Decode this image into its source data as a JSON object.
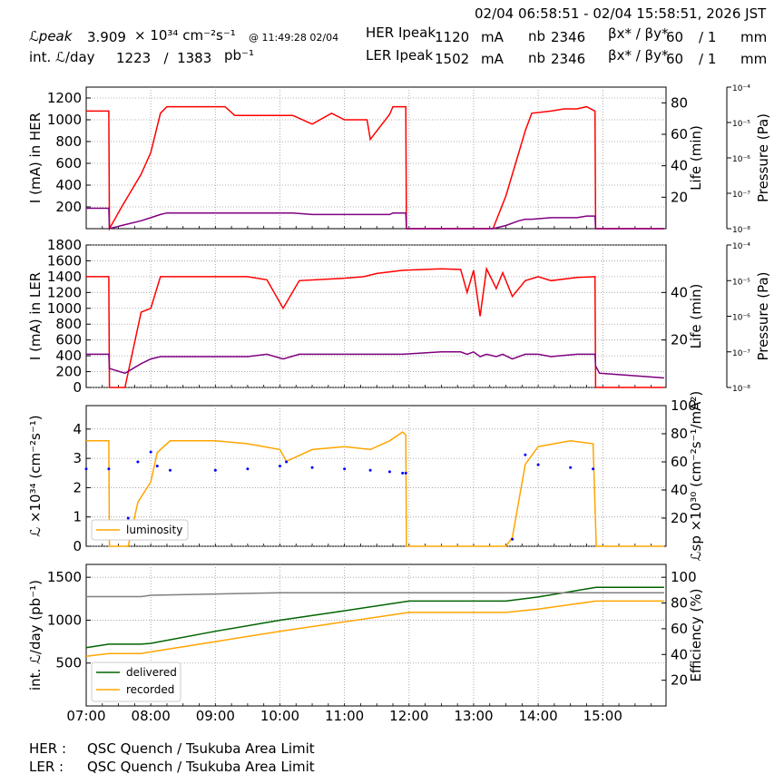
{
  "header": {
    "time_range": "02/04 06:58:51 - 02/04 15:58:51, 2026 JST",
    "lpeak_label": "ℒpeak",
    "lpeak_value": "3.909",
    "lpeak_exp": "× 10³⁴ cm⁻²s⁻¹",
    "lpeak_time": "@ 11:49:28 02/04",
    "intl_label": "int. ℒ/day",
    "intl_values": "1223   /  1383",
    "intl_unit": "pb⁻¹",
    "her_label": "HER Ipeak",
    "her_value": "1120",
    "ler_label": "LER Ipeak",
    "ler_value": "1502",
    "ma": "mA",
    "nb_label": "nb",
    "her_nb": "2346",
    "ler_nb": "2346",
    "beta_label": "βx* / βy*",
    "beta_value": "60",
    "beta_ratio": "/ 1",
    "mm": "mm"
  },
  "footer": {
    "her_label": "HER :",
    "her_text": "QSC Quench / Tsukuba Area Limit",
    "ler_label": "LER :",
    "ler_text": "QSC Quench / Tsukuba Area Limit"
  },
  "colors": {
    "red": "#ff0000",
    "purple": "#800080",
    "cyan": "#00ffff",
    "blue": "#0000ff",
    "orange": "#ffa500",
    "green": "#006400",
    "grey": "#808080"
  },
  "chart_data": [
    {
      "type": "line",
      "panel": "HER",
      "ylabel": "I (mA) in HER",
      "y2label": "Life (min)",
      "y3label": "Pressure (Pa)",
      "ylim": [
        0,
        1300
      ],
      "yticks": [
        200,
        400,
        600,
        800,
        1000,
        1200
      ],
      "y2ticks": [
        20,
        40,
        60,
        80
      ],
      "y2lim": [
        0,
        90
      ],
      "y3ticks": [
        "10⁻⁸",
        "10⁻⁷",
        "10⁻⁶",
        "10⁻⁵",
        "10⁻⁴"
      ],
      "x": [
        7.0,
        7.35,
        7.36,
        7.55,
        7.85,
        8.0,
        8.15,
        8.25,
        9.0,
        9.15,
        9.3,
        10.0,
        10.2,
        10.5,
        10.8,
        11.0,
        11.35,
        11.4,
        11.7,
        11.75,
        11.95,
        11.96,
        12.5,
        13.0,
        13.3,
        13.5,
        13.7,
        13.8,
        13.9,
        14.2,
        14.4,
        14.6,
        14.75,
        14.88,
        14.89,
        15.0,
        15.95
      ],
      "series": [
        {
          "name": "I (mA)",
          "values": [
            1080,
            1080,
            0,
            200,
            500,
            700,
            1060,
            1120,
            1120,
            1120,
            1040,
            1040,
            1040,
            960,
            1060,
            1000,
            1000,
            820,
            1050,
            1120,
            1120,
            0,
            0,
            0,
            0,
            300,
            700,
            900,
            1060,
            1080,
            1100,
            1100,
            1120,
            1080,
            0,
            0,
            0
          ]
        },
        {
          "name": "Life",
          "values": [
            13,
            13,
            0,
            2,
            5,
            7,
            9,
            10,
            10,
            10,
            10,
            10,
            10,
            9,
            9,
            9,
            9,
            9,
            9,
            10,
            10,
            0,
            0,
            0,
            0,
            2,
            5,
            6,
            6,
            7,
            7,
            7,
            8,
            8,
            0,
            0,
            0
          ]
        }
      ]
    },
    {
      "type": "line",
      "panel": "LER",
      "ylabel": "I (mA) in LER",
      "y2label": "Life (min)",
      "y3label": "Pressure (Pa)",
      "ylim": [
        0,
        1800
      ],
      "yticks": [
        0,
        200,
        400,
        600,
        800,
        1000,
        1200,
        1400,
        1600,
        1800
      ],
      "y2ticks": [
        20,
        40
      ],
      "y2lim": [
        0,
        60
      ],
      "y3ticks": [
        "10⁻⁸",
        "10⁻⁷",
        "10⁻⁶",
        "10⁻⁵",
        "10⁻⁴"
      ],
      "x": [
        7.0,
        7.35,
        7.36,
        7.6,
        7.85,
        8.0,
        8.15,
        8.3,
        9.0,
        9.5,
        9.8,
        10.05,
        10.3,
        11.0,
        11.3,
        11.5,
        11.9,
        12.5,
        12.8,
        12.9,
        13.0,
        13.1,
        13.2,
        13.35,
        13.45,
        13.6,
        13.8,
        14.0,
        14.2,
        14.6,
        14.88,
        14.89,
        14.95,
        15.95
      ],
      "series": [
        {
          "name": "I (mA)",
          "values": [
            1400,
            1400,
            0,
            0,
            950,
            1000,
            1400,
            1400,
            1400,
            1400,
            1360,
            1000,
            1350,
            1380,
            1400,
            1440,
            1480,
            1500,
            1490,
            1200,
            1480,
            900,
            1500,
            1250,
            1450,
            1150,
            1350,
            1400,
            1350,
            1390,
            1400,
            0,
            0,
            0
          ]
        },
        {
          "name": "Life",
          "values": [
            14,
            14,
            8,
            6,
            10,
            12,
            13,
            13,
            13,
            13,
            14,
            12,
            14,
            14,
            14,
            14,
            14,
            15,
            15,
            14,
            15,
            13,
            14,
            13,
            14,
            12,
            14,
            14,
            13,
            14,
            14,
            9,
            6,
            4
          ]
        }
      ]
    },
    {
      "type": "line",
      "panel": "Luminosity",
      "ylabel": "ℒ ×10³⁴ (cm⁻²s⁻¹)",
      "y2label": "ℒsp ×10³⁰ (cm⁻²s⁻¹/mA²)",
      "ylim": [
        0,
        4.8
      ],
      "yticks": [
        0,
        1,
        2,
        3,
        4
      ],
      "y2lim": [
        0,
        100
      ],
      "y2ticks": [
        20,
        40,
        60,
        80,
        100
      ],
      "x": [
        7.0,
        7.35,
        7.36,
        7.55,
        7.65,
        7.8,
        8.0,
        8.1,
        8.3,
        9.0,
        9.5,
        10.0,
        10.1,
        10.5,
        11.0,
        11.4,
        11.7,
        11.9,
        11.95,
        11.96,
        12.5,
        13.0,
        13.5,
        13.6,
        13.8,
        14.0,
        14.5,
        14.85,
        14.9,
        15.95
      ],
      "series": [
        {
          "name": "luminosity",
          "values": [
            3.6,
            3.6,
            0,
            0,
            0,
            1.5,
            2.2,
            3.2,
            3.6,
            3.6,
            3.5,
            3.3,
            2.9,
            3.3,
            3.4,
            3.3,
            3.6,
            3.9,
            3.8,
            0,
            0,
            0,
            0,
            0.3,
            2.8,
            3.4,
            3.6,
            3.5,
            0,
            0
          ]
        },
        {
          "name": "specific",
          "values": [
            55,
            55,
            null,
            null,
            20,
            60,
            67,
            57,
            54,
            54,
            55,
            57,
            60,
            56,
            55,
            54,
            53,
            52,
            52,
            null,
            null,
            null,
            null,
            5,
            65,
            58,
            56,
            55,
            null,
            null
          ]
        }
      ]
    },
    {
      "type": "line",
      "panel": "Integrated",
      "ylabel": "int. ℒ/day (pb⁻¹)",
      "y2label": "Efficiency (%)",
      "ylim": [
        0,
        1650
      ],
      "yticks": [
        500,
        1000,
        1500
      ],
      "y2lim": [
        0,
        110
      ],
      "y2ticks": [
        20,
        40,
        60,
        80,
        100
      ],
      "x": [
        7.0,
        7.35,
        7.85,
        8.0,
        9.0,
        10.0,
        11.0,
        12.0,
        13.0,
        13.5,
        14.0,
        14.9,
        15.95
      ],
      "series": [
        {
          "name": "delivered",
          "values": [
            680,
            720,
            720,
            730,
            870,
            1000,
            1110,
            1223,
            1223,
            1223,
            1270,
            1383,
            1383
          ]
        },
        {
          "name": "recorded",
          "values": [
            580,
            610,
            610,
            630,
            750,
            870,
            980,
            1090,
            1090,
            1090,
            1130,
            1223,
            1223
          ]
        },
        {
          "name": "efficiency",
          "values": [
            85,
            85,
            85,
            86,
            87,
            88,
            88,
            88,
            88,
            88,
            88,
            88,
            88
          ]
        }
      ],
      "legend": "bottom-left"
    }
  ],
  "xaxis": {
    "ticks": [
      "07:00",
      "08:00",
      "09:00",
      "10:00",
      "11:00",
      "12:00",
      "13:00",
      "14:00",
      "15:00"
    ],
    "start": 7.0,
    "end": 15.98
  }
}
